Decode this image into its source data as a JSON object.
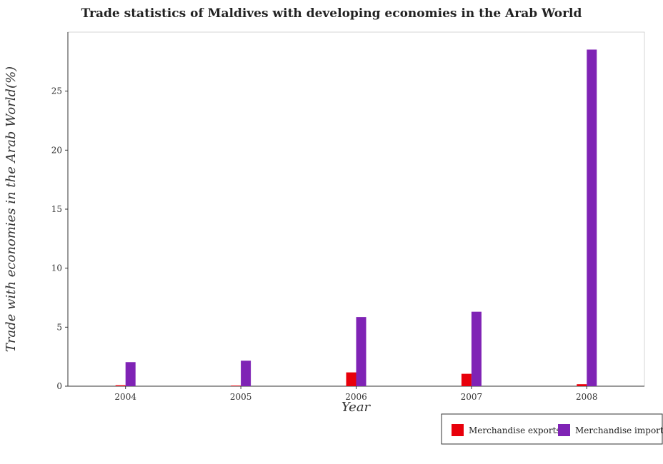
{
  "chart_data": {
    "type": "bar",
    "title": "Trade statistics of Maldives with developing economies in the Arab World",
    "xlabel": "Year",
    "ylabel": "Trade with economies in the Arab World(%)",
    "categories": [
      "2004",
      "2005",
      "2006",
      "2007",
      "2008"
    ],
    "series": [
      {
        "name": "Merchandise exports",
        "color": "#e8000b",
        "values": [
          0.08,
          0.05,
          1.17,
          1.05,
          0.17
        ]
      },
      {
        "name": "Merchandise imports",
        "color": "#7f23b5",
        "values": [
          2.04,
          2.16,
          5.86,
          6.31,
          28.52
        ]
      }
    ],
    "ylim": [
      0,
      30
    ],
    "yticks": [
      0,
      5,
      10,
      15,
      20,
      25
    ],
    "grid": false,
    "legend_position": "bottom-right"
  }
}
